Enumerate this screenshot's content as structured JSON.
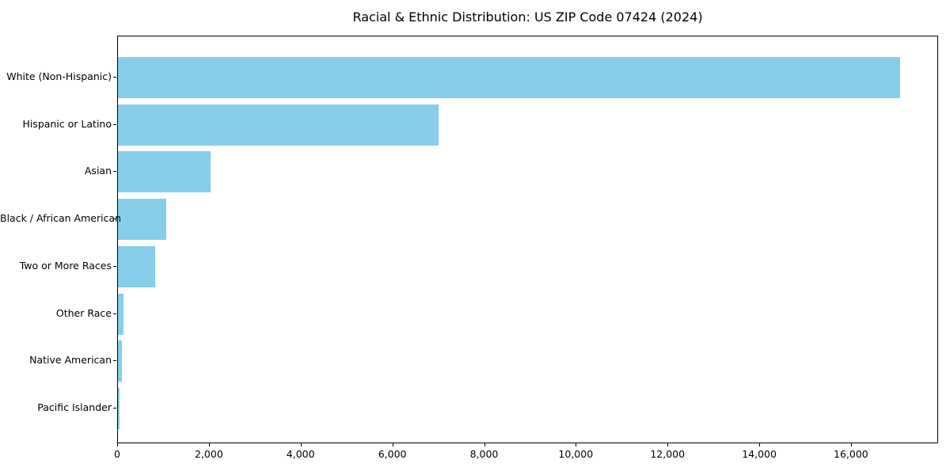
{
  "chart_data": {
    "type": "bar",
    "orientation": "horizontal",
    "title": "Racial & Ethnic Distribution: US ZIP Code 07424 (2024)",
    "categories": [
      "White (Non-Hispanic)",
      "Hispanic or Latino",
      "Asian",
      "Black / African American",
      "Two or More Races",
      "Other Race",
      "Native American",
      "Pacific Islander"
    ],
    "values": [
      17050,
      6990,
      2020,
      1060,
      810,
      125,
      80,
      40
    ],
    "xlabel": "",
    "ylabel": "",
    "xlim": [
      0,
      17900
    ],
    "x_ticks": [
      0,
      2000,
      4000,
      6000,
      8000,
      10000,
      12000,
      14000,
      16000
    ],
    "x_tick_labels": [
      "0",
      "2,000",
      "4,000",
      "6,000",
      "8,000",
      "10,000",
      "12,000",
      "14,000",
      "16,000"
    ],
    "grid": false,
    "legend": null,
    "colors": {
      "bar": "#87CEEB",
      "background": "#ffffff",
      "spine": "#000000",
      "text": "#000000"
    }
  }
}
